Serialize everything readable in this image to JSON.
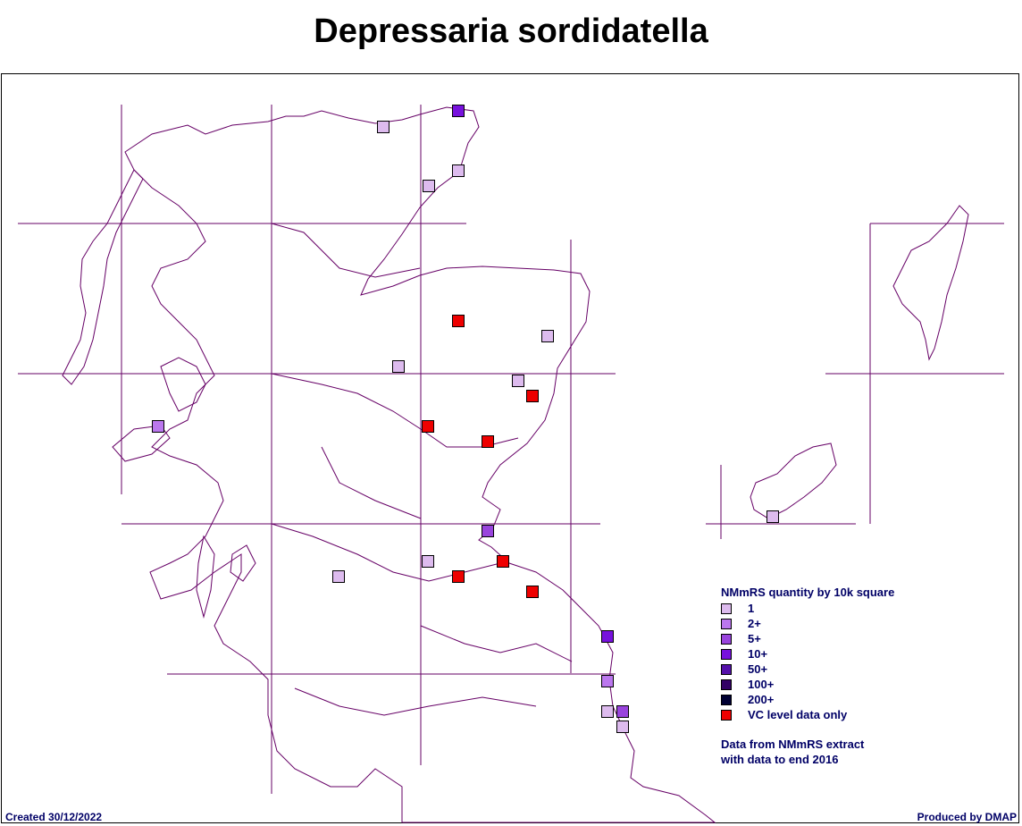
{
  "title": "Depressaria sordidatella",
  "map": {
    "colors": {
      "boundary": "#660066",
      "q1": "#ddbbee",
      "q2": "#bb77ee",
      "q5": "#9944dd",
      "q10": "#7711dd",
      "q50": "#5511aa",
      "q100": "#330066",
      "q200": "#000033",
      "vc": "#ee0000"
    },
    "records": [
      {
        "category": "q1"
      },
      {
        "category": "q10"
      },
      {
        "category": "q1"
      },
      {
        "category": "q1"
      },
      {
        "category": "vc"
      },
      {
        "category": "q1"
      },
      {
        "category": "q1"
      },
      {
        "category": "q1"
      },
      {
        "category": "vc"
      },
      {
        "category": "vc"
      },
      {
        "category": "vc"
      },
      {
        "category": "q2"
      },
      {
        "category": "q5"
      },
      {
        "category": "q1"
      },
      {
        "category": "vc"
      },
      {
        "category": "q1"
      },
      {
        "category": "vc"
      },
      {
        "category": "vc"
      },
      {
        "category": "q10"
      },
      {
        "category": "q2"
      },
      {
        "category": "q1"
      },
      {
        "category": "q5"
      },
      {
        "category": "q1"
      },
      {
        "category": "q1"
      }
    ]
  },
  "legend": {
    "title": "NMmRS quantity by 10k square",
    "items": [
      {
        "label": "1",
        "color": "#ddbbee"
      },
      {
        "label": "2+",
        "color": "#bb77ee"
      },
      {
        "label": "5+",
        "color": "#9944dd"
      },
      {
        "label": "10+",
        "color": "#7711dd"
      },
      {
        "label": "50+",
        "color": "#5511aa"
      },
      {
        "label": "100+",
        "color": "#330066"
      },
      {
        "label": "200+",
        "color": "#000033"
      },
      {
        "label": "VC level data only",
        "color": "#ee0000"
      }
    ],
    "note_line1": "Data from NMmRS extract",
    "note_line2": "with data to end 2016"
  },
  "footer": {
    "created": "Created 30/12/2022",
    "produced": "Produced by DMAP"
  }
}
